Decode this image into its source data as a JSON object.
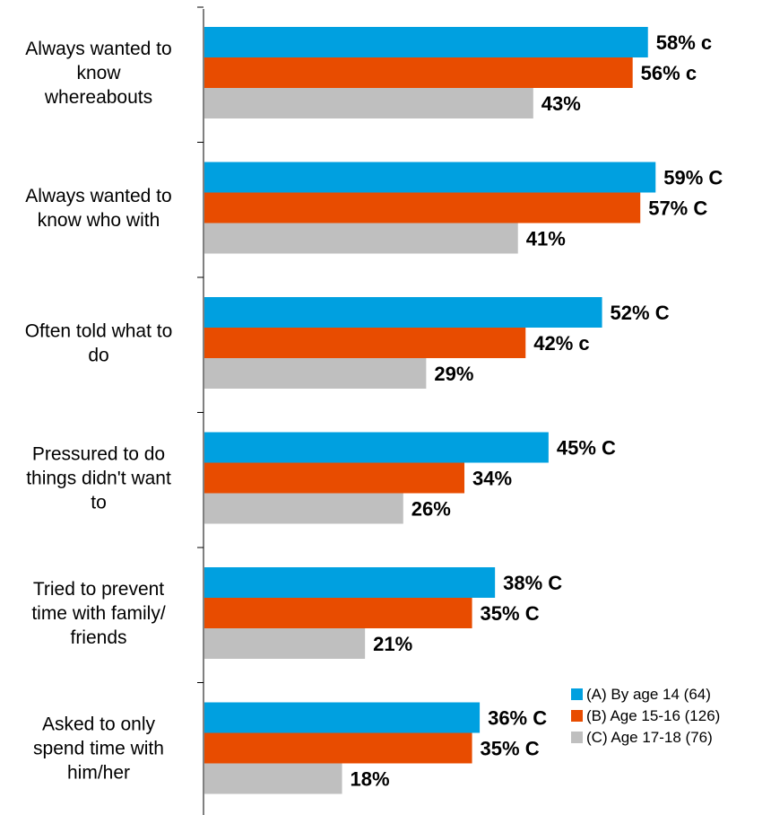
{
  "chart_data": {
    "type": "bar",
    "orientation": "horizontal",
    "categories": [
      [
        "Always wanted to",
        "know",
        "whereabouts"
      ],
      [
        "Always wanted to",
        "know who with"
      ],
      [
        "Often told what to",
        "do"
      ],
      [
        "Pressured to do",
        "things didn't want",
        "to"
      ],
      [
        "Tried to prevent",
        "time with family/",
        "friends"
      ],
      [
        "Asked to only",
        "spend time with",
        "him/her"
      ]
    ],
    "series": [
      {
        "name": "(A) By age 14 (64)",
        "color": "#00A0E0",
        "values": [
          58,
          59,
          52,
          45,
          38,
          36
        ],
        "labels": [
          "58% c",
          "59% C",
          "52% C",
          "45% C",
          "38% C",
          "36% C"
        ]
      },
      {
        "name": "(B) Age 15-16 (126)",
        "color": "#E84C00",
        "values": [
          56,
          57,
          42,
          34,
          35,
          35
        ],
        "labels": [
          "56% c",
          "57% C",
          "42% c",
          "34%",
          "35% C",
          "35% C"
        ]
      },
      {
        "name": "(C) Age 17-18 (76)",
        "color": "#BFBFBF",
        "values": [
          43,
          41,
          29,
          26,
          21,
          18
        ],
        "labels": [
          "43%",
          "41%",
          "29%",
          "26%",
          "21%",
          "18%"
        ]
      }
    ],
    "xlim": [
      0,
      100
    ],
    "grid": false,
    "legend_position": "bottom-right",
    "title": "",
    "xlabel": "",
    "ylabel": ""
  }
}
